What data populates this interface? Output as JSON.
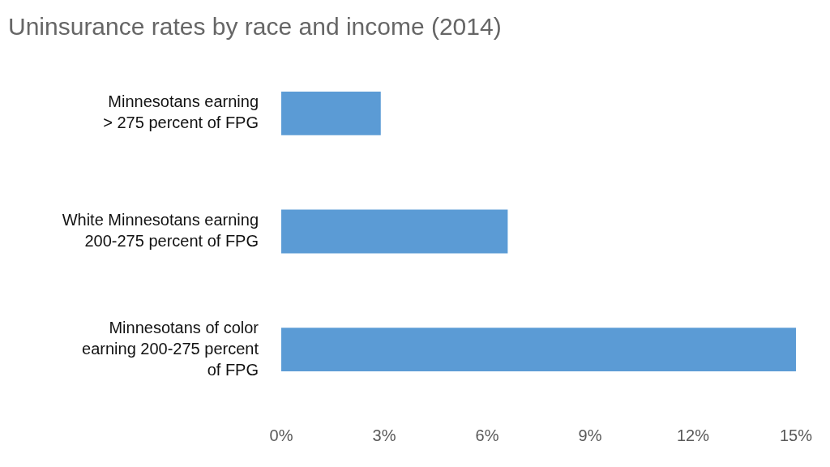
{
  "chart_data": {
    "type": "bar",
    "orientation": "horizontal",
    "title": "Uninsurance rates by race and income (2014)",
    "categories": [
      [
        "Minnesotans earning",
        "> 275 percent of FPG"
      ],
      [
        "White Minnesotans earning",
        "200-275 percent of FPG"
      ],
      [
        "Minnesotans of color",
        "earning 200-275 percent",
        "of FPG"
      ]
    ],
    "values": [
      2.9,
      6.6,
      15
    ],
    "color": "#5b9bd5",
    "xlim": [
      0,
      15
    ],
    "xticks": [
      {
        "value": 0,
        "label": "0%"
      },
      {
        "value": 3,
        "label": "3%"
      },
      {
        "value": 6,
        "label": "6%"
      },
      {
        "value": 9,
        "label": "9%"
      },
      {
        "value": 12,
        "label": "12%"
      },
      {
        "value": 15,
        "label": "15%"
      }
    ],
    "grid": false
  }
}
